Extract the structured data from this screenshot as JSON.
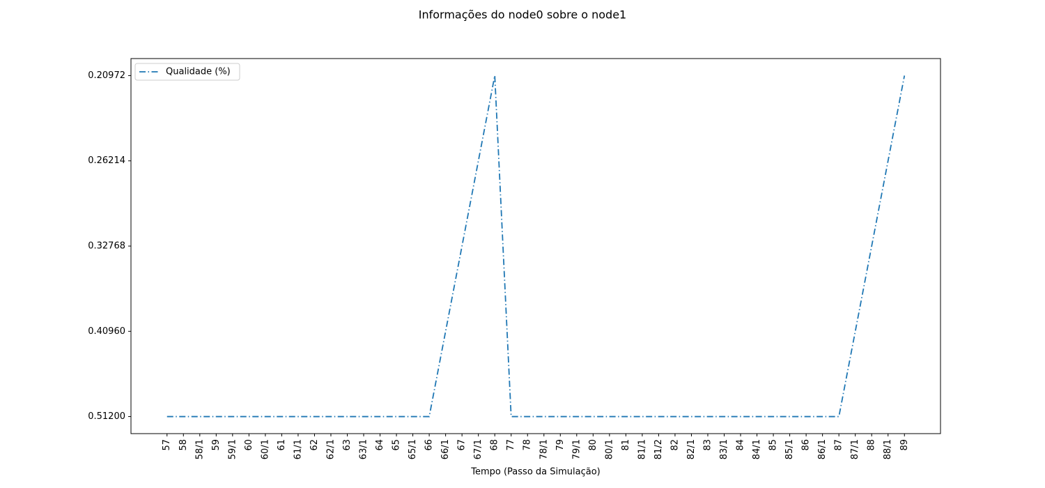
{
  "chart_data": {
    "type": "line",
    "title": "Informações do node0 sobre o node1",
    "x_label": "Tempo (Passo da Simulação)",
    "y_scale": "categorical",
    "categories": [
      "57",
      "58",
      "58/1",
      "59",
      "59/1",
      "60",
      "60/1",
      "61",
      "61/1",
      "62",
      "62/1",
      "63",
      "63/1",
      "64",
      "65",
      "65/1",
      "66",
      "66/1",
      "67",
      "67/1",
      "68",
      "77",
      "78",
      "78/1",
      "79",
      "79/1",
      "80",
      "80/1",
      "81",
      "81/1",
      "81/2",
      "82",
      "82/1",
      "83",
      "83/1",
      "84",
      "84/1",
      "85",
      "85/1",
      "86",
      "86/1",
      "87",
      "87/1",
      "88",
      "88/1",
      "89"
    ],
    "series": [
      {
        "name": "Qualidade (%)",
        "color": "#1f77b4",
        "line_style": "dashdot",
        "values": [
          0.512,
          0.512,
          0.512,
          0.512,
          0.512,
          0.512,
          0.512,
          0.512,
          0.512,
          0.512,
          0.512,
          0.512,
          0.512,
          0.512,
          0.512,
          0.512,
          0.512,
          0.4096,
          0.32768,
          0.26214,
          0.20972,
          0.512,
          0.512,
          0.512,
          0.512,
          0.512,
          0.512,
          0.512,
          0.512,
          0.512,
          0.512,
          0.512,
          0.512,
          0.512,
          0.512,
          0.512,
          0.512,
          0.512,
          0.512,
          0.512,
          0.512,
          0.512,
          0.4096,
          0.32768,
          0.26214,
          0.20972
        ]
      }
    ],
    "yticks": [
      {
        "value": 0.512,
        "label": "0.51200"
      },
      {
        "value": 0.4096,
        "label": "0.40960"
      },
      {
        "value": 0.32768,
        "label": "0.32768"
      },
      {
        "value": 0.26214,
        "label": "0.26214"
      },
      {
        "value": 0.20972,
        "label": "0.20972"
      }
    ],
    "legend": "upper left",
    "grid": false
  }
}
